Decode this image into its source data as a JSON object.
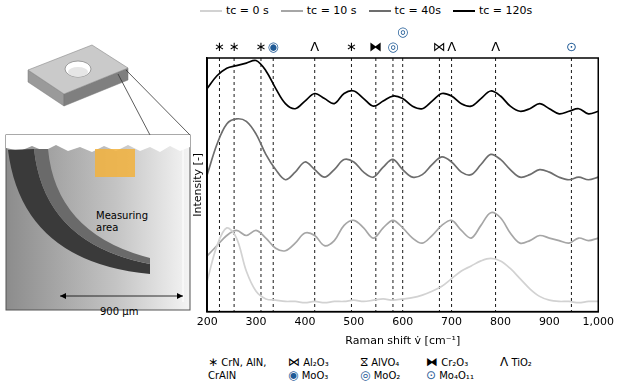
{
  "chart_data": {
    "type": "line",
    "x_label": "Raman shift v̇ [cm⁻¹]",
    "y_label": "Intensity [-]",
    "x": [
      200,
      220,
      240,
      260,
      280,
      300,
      320,
      340,
      360,
      380,
      400,
      420,
      440,
      460,
      480,
      500,
      520,
      540,
      560,
      580,
      600,
      620,
      640,
      660,
      680,
      700,
      720,
      740,
      760,
      780,
      800,
      820,
      840,
      860,
      880,
      900,
      920,
      940,
      960,
      980,
      1000
    ],
    "series": [
      {
        "name": "tc = 0 s",
        "color": "#d2d2d2",
        "values": [
          1.2,
          2.6,
          3.3,
          2.9,
          1.6,
          0.8,
          0.5,
          0.45,
          0.4,
          0.4,
          0.35,
          0.4,
          0.35,
          0.4,
          0.4,
          0.45,
          0.4,
          0.45,
          0.5,
          0.45,
          0.5,
          0.55,
          0.65,
          0.8,
          1.0,
          1.3,
          1.6,
          1.8,
          2.0,
          2.1,
          2.0,
          1.7,
          1.3,
          0.9,
          0.6,
          0.45,
          0.4,
          0.4,
          0.35,
          0.4,
          0.4
        ]
      },
      {
        "name": "tc = 10 s",
        "color": "#a6a6a6",
        "values": [
          2.2,
          2.6,
          3.0,
          3.2,
          3.0,
          3.2,
          2.9,
          2.5,
          2.4,
          2.7,
          3.1,
          3.0,
          2.6,
          2.8,
          3.4,
          3.6,
          3.3,
          2.9,
          3.3,
          3.6,
          3.3,
          2.9,
          2.7,
          3.0,
          3.4,
          3.6,
          3.2,
          2.9,
          3.4,
          3.9,
          3.7,
          3.1,
          2.7,
          2.8,
          3.0,
          2.9,
          2.8,
          2.7,
          2.9,
          2.8,
          2.9
        ]
      },
      {
        "name": "tc = 40s",
        "color": "#6d6d6d",
        "values": [
          5.4,
          6.6,
          7.4,
          7.6,
          7.5,
          7.0,
          6.2,
          5.6,
          5.2,
          5.5,
          5.9,
          5.6,
          5.3,
          5.6,
          6.0,
          5.9,
          5.5,
          5.3,
          5.7,
          6.0,
          5.6,
          5.3,
          5.4,
          5.8,
          6.1,
          5.9,
          5.5,
          5.4,
          5.8,
          6.2,
          6.0,
          5.6,
          5.3,
          5.4,
          5.6,
          5.5,
          5.3,
          5.2,
          5.3,
          5.2,
          5.3
        ]
      },
      {
        "name": "tc = 120s",
        "color": "#000000",
        "values": [
          8.8,
          9.3,
          9.6,
          9.7,
          9.8,
          9.9,
          9.5,
          8.8,
          8.2,
          8.0,
          8.3,
          8.6,
          8.4,
          8.2,
          8.6,
          8.7,
          8.4,
          8.1,
          8.3,
          8.5,
          8.4,
          8.1,
          8.0,
          8.3,
          8.6,
          8.5,
          8.2,
          8.1,
          8.4,
          8.7,
          8.5,
          8.1,
          7.9,
          8.0,
          8.2,
          8.0,
          7.8,
          7.9,
          8.0,
          7.8,
          7.9
        ]
      }
    ],
    "xlim": [
      200,
      1000
    ],
    "xticks": [
      200,
      300,
      400,
      500,
      600,
      700,
      800,
      900,
      {
        "value": 1000,
        "label": "1,000"
      }
    ],
    "ylim": [
      0,
      10
    ],
    "tick_labels": "x",
    "grid": false,
    "legend": "top",
    "annotations": [
      {
        "x": 225,
        "symbol": "∗"
      },
      {
        "x": 255,
        "symbol": "∗"
      },
      {
        "x": 310,
        "symbol": "∗"
      },
      {
        "x": 335,
        "symbol": "◉"
      },
      {
        "x": 420,
        "symbol": "Λ"
      },
      {
        "x": 495,
        "symbol": "∗"
      },
      {
        "x": 545,
        "symbol": "⧓"
      },
      {
        "x": 580,
        "symbol": "◎"
      },
      {
        "x": 600,
        "symbol": "◎"
      },
      {
        "x": 675,
        "symbol": "⋈"
      },
      {
        "x": 700,
        "symbol": "Λ"
      },
      {
        "x": 790,
        "symbol": "Λ"
      },
      {
        "x": 945,
        "symbol": "⊙"
      }
    ],
    "symbol_legend": [
      {
        "symbol": "∗",
        "label": "CrN, AlN, CrAlN",
        "color": "#000000"
      },
      {
        "symbol": "⋈",
        "label": "Al₂O₃",
        "color": "#000000"
      },
      {
        "symbol": "⧖",
        "label": "AlVO₄",
        "color": "#000000"
      },
      {
        "symbol": "⧓",
        "label": "Cr₂O₃",
        "color": "#000000"
      },
      {
        "symbol": "Λ",
        "label": "TiO₂",
        "color": "#000000"
      },
      {
        "symbol": "◉",
        "label": "MoO₃",
        "color": "#1f5a96"
      },
      {
        "symbol": "◎",
        "label": "MoO₂",
        "color": "#1f5a96"
      },
      {
        "symbol": "⊙",
        "label": "Mo₄O₁₁",
        "color": "#1f5a96"
      }
    ]
  },
  "schematic": {
    "measuring_area": "Measuring area",
    "dimension": "900 µm"
  }
}
